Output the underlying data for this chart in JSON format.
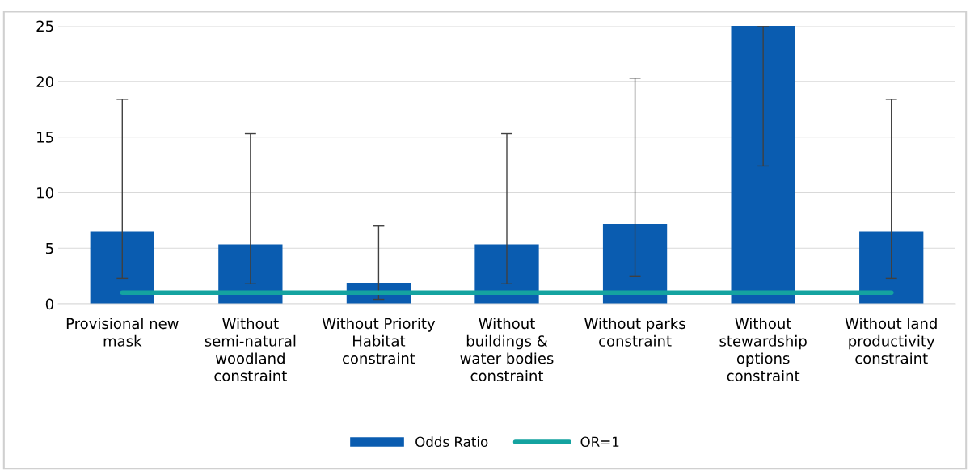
{
  "chart_data": {
    "type": "bar",
    "categories": [
      "Provisional new mask",
      "Without semi-natural woodland constraint",
      "Without Priority Habitat constraint",
      "Without buildings & water bodies constraint",
      "Without parks constraint",
      "Without stewardship options constraint",
      "Without land productivity constraint"
    ],
    "series": [
      {
        "name": "Odds Ratio",
        "color": "#0a5cb0",
        "values": [
          6.5,
          5.35,
          1.9,
          5.35,
          7.2,
          25,
          6.5
        ],
        "errors": [
          [
            2.3,
            18.4
          ],
          [
            1.8,
            15.3
          ],
          [
            0.4,
            7.0
          ],
          [
            1.8,
            15.3
          ],
          [
            2.45,
            20.3
          ],
          [
            12.4,
            25
          ],
          [
            2.3,
            18.4
          ]
        ]
      },
      {
        "name": "OR=1",
        "type": "line",
        "color": "#14a3a0",
        "values": [
          1,
          1,
          1,
          1,
          1,
          1,
          1
        ]
      }
    ],
    "ylim": [
      0,
      25
    ],
    "yticks": [
      0,
      5,
      10,
      15,
      20,
      25
    ],
    "grid": "y",
    "legend": "bottom"
  }
}
